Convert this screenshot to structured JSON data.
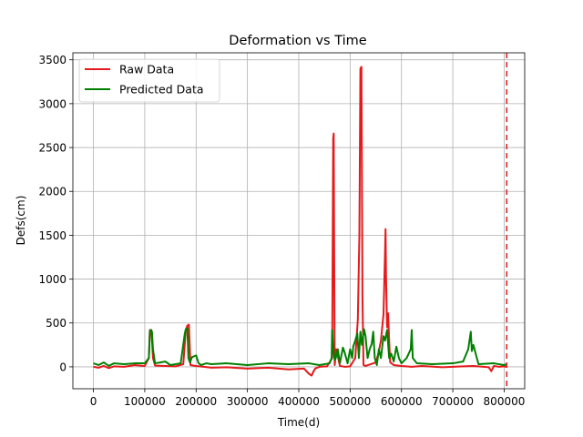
{
  "chart_data": {
    "type": "line",
    "title": "Deformation vs Time",
    "xlabel": "Time(d)",
    "ylabel": "Defs(cm)",
    "xlim": [
      -40000,
      840000
    ],
    "ylim": [
      -250,
      3580
    ],
    "xticks": [
      0,
      100000,
      200000,
      300000,
      400000,
      500000,
      600000,
      700000,
      800000
    ],
    "yticks": [
      0,
      500,
      1000,
      1500,
      2000,
      2500,
      3000,
      3500
    ],
    "grid": true,
    "legend_position": "top-left",
    "vline": {
      "x": 805000,
      "color": "#d62728",
      "style": "dashed"
    },
    "series": [
      {
        "name": "Raw Data",
        "color": "#e41a1c",
        "x": [
          0,
          10000,
          20000,
          30000,
          40000,
          60000,
          80000,
          100000,
          108000,
          110000,
          113000,
          116000,
          120000,
          140000,
          160000,
          175000,
          180000,
          183000,
          186000,
          189000,
          200000,
          215000,
          230000,
          260000,
          300000,
          340000,
          380000,
          410000,
          420000,
          425000,
          428000,
          432000,
          440000,
          455000,
          465000,
          467000,
          468000,
          469000,
          470000,
          473000,
          480000,
          490000,
          500000,
          510000,
          515000,
          518000,
          520000,
          522000,
          524000,
          526000,
          530000,
          540000,
          550000,
          555000,
          560000,
          565000,
          568000,
          569000,
          570000,
          572000,
          574000,
          576000,
          578000,
          585000,
          600000,
          620000,
          640000,
          680000,
          720000,
          740000,
          760000,
          770000,
          775000,
          780000,
          790000,
          800000,
          804000
        ],
        "values": [
          0,
          -10,
          10,
          -15,
          5,
          0,
          20,
          10,
          100,
          420,
          420,
          100,
          15,
          10,
          5,
          30,
          420,
          470,
          480,
          20,
          10,
          0,
          -10,
          -5,
          -20,
          -10,
          -30,
          -20,
          -80,
          -100,
          -60,
          -20,
          0,
          5,
          100,
          2600,
          2660,
          1200,
          20,
          200,
          10,
          0,
          5,
          100,
          540,
          1500,
          3400,
          3420,
          800,
          20,
          10,
          30,
          50,
          150,
          300,
          600,
          1300,
          1570,
          1000,
          450,
          610,
          300,
          50,
          20,
          10,
          0,
          10,
          -5,
          5,
          10,
          0,
          -5,
          -50,
          10,
          0,
          5,
          0
        ]
      },
      {
        "name": "Predicted Data",
        "color": "#008000",
        "x": [
          0,
          10000,
          20000,
          30000,
          40000,
          60000,
          80000,
          100000,
          108000,
          110000,
          112000,
          114000,
          116000,
          120000,
          130000,
          140000,
          150000,
          170000,
          178000,
          180000,
          183000,
          185000,
          188000,
          192000,
          200000,
          205000,
          210000,
          220000,
          230000,
          260000,
          300000,
          340000,
          380000,
          420000,
          440000,
          460000,
          464000,
          465000,
          467000,
          470000,
          472000,
          476000,
          480000,
          486000,
          490000,
          495000,
          500000,
          504000,
          506000,
          510000,
          514000,
          517000,
          520000,
          523000,
          527000,
          530000,
          534000,
          538000,
          542000,
          545000,
          548000,
          552000,
          556000,
          560000,
          565000,
          568000,
          572000,
          576000,
          580000,
          585000,
          590000,
          595000,
          600000,
          610000,
          618000,
          620000,
          622000,
          630000,
          660000,
          700000,
          720000,
          730000,
          735000,
          737000,
          740000,
          750000,
          780000,
          800000,
          804000
        ],
        "values": [
          40,
          20,
          50,
          10,
          40,
          30,
          40,
          40,
          100,
          410,
          420,
          400,
          200,
          40,
          50,
          60,
          20,
          40,
          380,
          430,
          440,
          100,
          50,
          110,
          130,
          40,
          20,
          40,
          30,
          40,
          20,
          40,
          30,
          40,
          20,
          40,
          100,
          420,
          200,
          80,
          100,
          200,
          40,
          220,
          150,
          40,
          200,
          100,
          230,
          300,
          380,
          100,
          400,
          250,
          430,
          350,
          100,
          200,
          260,
          400,
          100,
          20,
          200,
          100,
          350,
          300,
          420,
          100,
          150,
          60,
          230,
          100,
          40,
          100,
          200,
          420,
          100,
          40,
          30,
          40,
          60,
          200,
          400,
          180,
          250,
          30,
          40,
          20,
          30
        ]
      }
    ]
  }
}
